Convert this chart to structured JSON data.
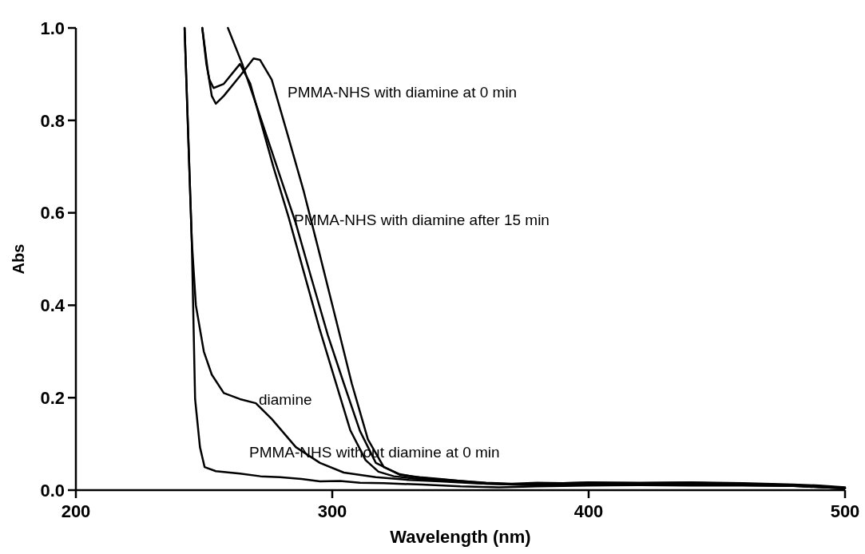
{
  "chart_data": {
    "type": "line",
    "xlabel": "Wavelength (nm)",
    "ylabel": "Abs",
    "xlim": [
      200,
      500
    ],
    "ylim": [
      0,
      1
    ],
    "xticks": [
      200,
      300,
      400,
      500
    ],
    "yticks": [
      {
        "value": 0,
        "label": "0.0"
      },
      {
        "value": 0.2,
        "label": "0.2"
      },
      {
        "value": 0.4,
        "label": "0.4"
      },
      {
        "value": 0.6,
        "label": "0.6"
      },
      {
        "value": 0.8,
        "label": "0.8"
      },
      {
        "value": 1,
        "label": "1.0"
      }
    ],
    "grid": false,
    "marker": "none",
    "line_style": "solid",
    "series": [
      {
        "color": "#000000",
        "x": [
          249.3,
          251.5,
          253,
          254.6,
          257.7,
          264,
          269.3,
          271.8,
          276.4,
          282.7,
          288.9,
          295.2,
          301.4,
          307.6,
          313.9,
          320.1,
          326,
          332.6,
          340,
          350,
          360,
          370,
          380,
          390,
          400,
          420,
          440,
          460,
          480,
          490,
          500
        ],
        "values": [
          1,
          0.905,
          0.853,
          0.836,
          0.853,
          0.896,
          0.934,
          0.931,
          0.888,
          0.767,
          0.646,
          0.508,
          0.37,
          0.231,
          0.11,
          0.05,
          0.035,
          0.028,
          0.024,
          0.02,
          0.016,
          0.014,
          0.016,
          0.015,
          0.017,
          0.016,
          0.017,
          0.015,
          0.012,
          0.01,
          0.006
        ]
      },
      {
        "color": "#000000",
        "x": [
          249.3,
          250.9,
          252.1,
          253.7,
          257.7,
          264,
          268,
          272,
          277,
          283,
          289,
          295,
          301,
          307,
          313,
          318,
          324,
          332,
          340,
          350,
          360,
          375,
          390,
          400,
          420,
          440,
          460,
          480,
          500
        ],
        "values": [
          1,
          0.922,
          0.888,
          0.87,
          0.879,
          0.922,
          0.88,
          0.8,
          0.7,
          0.59,
          0.47,
          0.35,
          0.24,
          0.13,
          0.065,
          0.04,
          0.03,
          0.025,
          0.022,
          0.018,
          0.014,
          0.012,
          0.015,
          0.016,
          0.015,
          0.016,
          0.014,
          0.011,
          0.005
        ]
      },
      {
        "color": "#000000",
        "x": [
          259.3,
          264.9,
          270.2,
          279.6,
          285.8,
          292,
          298.3,
          304.5,
          310.8,
          317,
          326.4,
          334,
          342,
          350,
          360,
          370,
          380,
          390,
          400,
          420,
          440,
          460,
          480,
          500
        ],
        "values": [
          1,
          0.922,
          0.836,
          0.68,
          0.577,
          0.456,
          0.335,
          0.231,
          0.128,
          0.059,
          0.033,
          0.028,
          0.024,
          0.02,
          0.015,
          0.013,
          0.012,
          0.014,
          0.013,
          0.015,
          0.013,
          0.012,
          0.01,
          0.004
        ]
      },
      {
        "color": "#000000",
        "x": [
          242.4,
          245.2,
          246.8,
          249.9,
          253,
          257.7,
          264,
          270.2,
          276.4,
          285.8,
          295.2,
          304.5,
          317,
          330,
          342,
          355,
          370,
          385,
          400,
          420,
          440,
          460,
          480,
          500
        ],
        "values": [
          1,
          0.54,
          0.4,
          0.3,
          0.25,
          0.21,
          0.197,
          0.188,
          0.154,
          0.093,
          0.059,
          0.038,
          0.028,
          0.022,
          0.019,
          0.015,
          0.012,
          0.01,
          0.012,
          0.013,
          0.012,
          0.011,
          0.009,
          0.004
        ]
      },
      {
        "color": "#000000",
        "x": [
          242.4,
          245.2,
          246.5,
          248.4,
          250.2,
          254.6,
          264,
          272,
          279.6,
          288,
          295.2,
          303,
          310.8,
          320,
          335,
          350,
          365,
          380,
          400,
          420,
          440,
          460,
          480,
          500
        ],
        "values": [
          1,
          0.542,
          0.197,
          0.093,
          0.05,
          0.041,
          0.036,
          0.03,
          0.028,
          0.024,
          0.019,
          0.02,
          0.016,
          0.015,
          0.012,
          0.008,
          0.006,
          0.008,
          0.01,
          0.011,
          0.01,
          0.01,
          0.009,
          0.004
        ]
      }
    ],
    "annotations": [
      "PMMA-NHS with diamine at 0 min",
      "PMMA-NHS with diamine after 15 min",
      "diamine",
      "PMMA-NHS without diamine at 0 min"
    ]
  }
}
